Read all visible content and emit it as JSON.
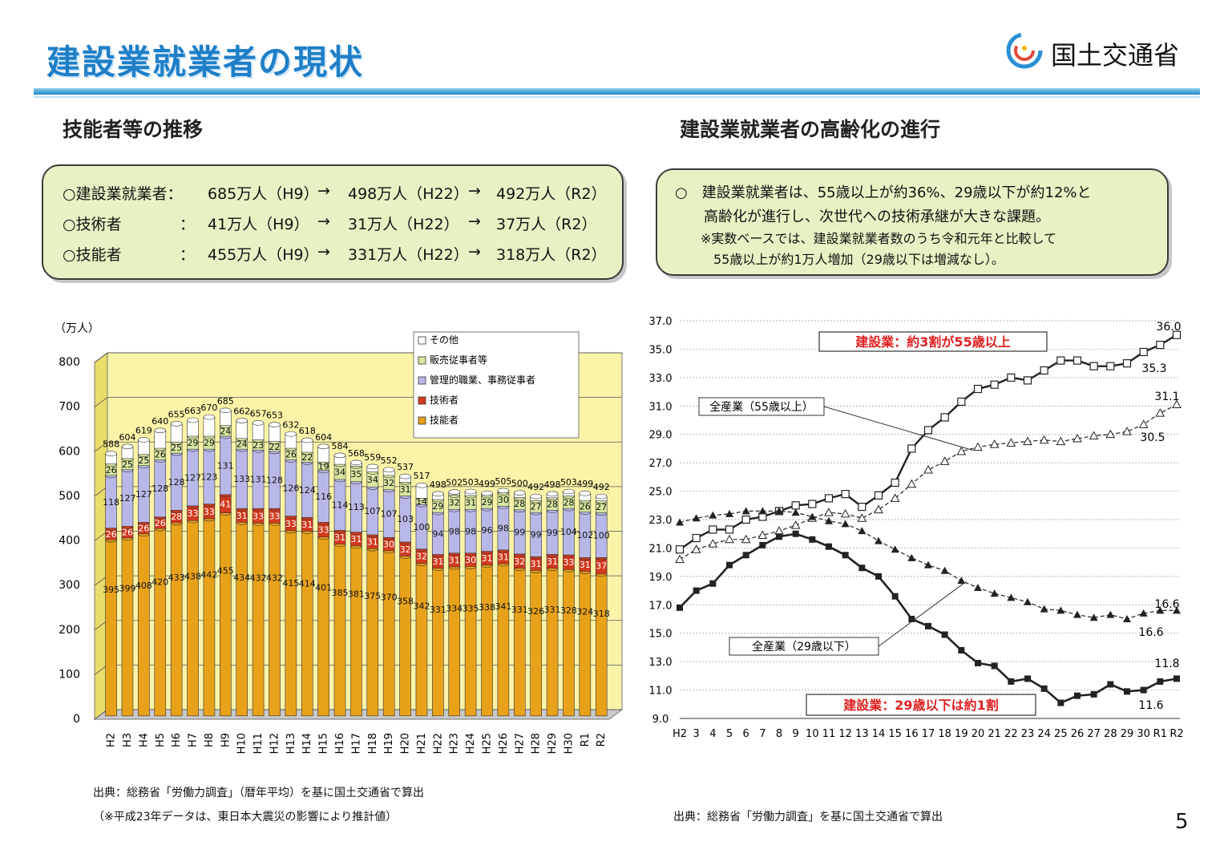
{
  "header": {
    "title": "建設業就業者の現状",
    "ministry": "国土交通省"
  },
  "left": {
    "subtitle": "技能者等の推移",
    "summary": [
      {
        "label": "○建設業就業者：",
        "v1": "685万人（H9）",
        "arrow1": "→",
        "v2": "498万人（H22）",
        "arrow2": "→",
        "v3": "492万人（R2）"
      },
      {
        "label": "○技術者",
        "colon": "：",
        "v1": "41万人（H9）",
        "arrow1": "→",
        "v2": "31万人（H22）",
        "arrow2": "→",
        "v3": "37万人（R2）"
      },
      {
        "label": "○技能者",
        "colon": "：",
        "v1": "455万人（H9）",
        "arrow1": "→",
        "v2": "331万人（H22）",
        "arrow2": "→",
        "v3": "318万人（R2）"
      }
    ],
    "source1": "出典：総務省「労働力調査」（暦年平均）を基に国土交通省で算出",
    "source2": "（※平成23年データは、東日本大震災の影響により推計値）"
  },
  "right": {
    "subtitle": "建設業就業者の高齢化の進行",
    "summary": [
      "○　建設業就業者は、55歳以上が約36%、29歳以下が約12%と",
      "　　高齢化が進行し、次世代への技術承継が大きな課題。",
      "　　※実数ベースでは、建設業就業者数のうち令和元年と比較して",
      "　　　55歳以上が約1万人増加（29歳以下は増減なし）。"
    ],
    "source": "出典：総務省「労働力調査」を基に国土交通省で算出"
  },
  "page_number": "5",
  "colors": {
    "title_blue": "#1e7fc8",
    "box_green": "#e6f2c4",
    "skill": "#e8a21a",
    "engineer": "#d23a1e",
    "manager": "#b8b8e8",
    "sales": "#d8e6a0",
    "other": "#ffffff",
    "wall": "#fbf4a8",
    "red_label": "#e02020"
  },
  "chart_data": [
    {
      "type": "bar",
      "stacked": true,
      "unit": "（万人）",
      "categories": [
        "H2",
        "H3",
        "H4",
        "H5",
        "H6",
        "H7",
        "H8",
        "H9",
        "H10",
        "H11",
        "H12",
        "H13",
        "H14",
        "H15",
        "H16",
        "H17",
        "H18",
        "H19",
        "H20",
        "H21",
        "H22",
        "H23",
        "H24",
        "H25",
        "H26",
        "H27",
        "H28",
        "H29",
        "H30",
        "R1",
        "R2"
      ],
      "ylim": [
        0,
        800
      ],
      "yticks": [
        "0",
        "100",
        "200",
        "300",
        "400",
        "500",
        "600",
        "700",
        "800"
      ],
      "legend": [
        "その他",
        "販売従事者等",
        "管理的職業、事務従事者",
        "技術者",
        "技能者"
      ],
      "legend_position": "top-right",
      "totals": [
        588,
        604,
        619,
        640,
        655,
        663,
        670,
        685,
        662,
        657,
        653,
        632,
        618,
        604,
        584,
        568,
        559,
        552,
        537,
        517,
        498,
        502,
        503,
        499,
        505,
        500,
        492,
        498,
        503,
        499,
        492
      ],
      "series": [
        {
          "name": "技能者",
          "values": [
            395,
            399,
            408,
            420,
            433,
            438,
            442,
            455,
            434,
            432,
            432,
            415,
            414,
            401,
            385,
            381,
            375,
            370,
            358,
            342,
            331,
            334,
            335,
            338,
            341,
            331,
            326,
            331,
            328,
            324,
            318
          ]
        },
        {
          "name": "技術者",
          "values": [
            26,
            26,
            26,
            26,
            28,
            33,
            33,
            41,
            31,
            33,
            33,
            33,
            31,
            33,
            31,
            31,
            31,
            30,
            32,
            32,
            31,
            31,
            30,
            31,
            31,
            32,
            31,
            31,
            33,
            31,
            37
          ]
        },
        {
          "name": "管理的職業、事務従事者",
          "values": [
            118,
            127,
            127,
            128,
            128,
            127,
            123,
            131,
            133,
            131,
            128,
            126,
            124,
            116,
            114,
            113,
            107,
            107,
            103,
            100,
            94,
            98,
            98,
            96,
            98,
            99,
            99,
            99,
            104,
            102,
            100
          ]
        },
        {
          "name": "販売従事者等",
          "values": [
            26,
            25,
            25,
            26,
            25,
            29,
            29,
            24,
            24,
            23,
            22,
            26,
            22,
            19,
            34,
            35,
            34,
            32,
            31,
            14,
            29,
            32,
            31,
            29,
            30,
            28,
            27,
            28,
            28,
            26,
            27
          ]
        },
        {
          "name": "その他",
          "values": [
            23,
            27,
            33,
            40,
            41,
            36,
            43,
            34,
            40,
            38,
            38,
            32,
            27,
            35,
            20,
            8,
            12,
            13,
            13,
            29,
            13,
            7,
            9,
            5,
            5,
            10,
            9,
            9,
            10,
            16,
            10
          ]
        }
      ],
      "value_labels": {
        "技能者": [
          "395",
          "399",
          "408",
          "420",
          "433",
          "438",
          "442",
          "455",
          "434",
          "432",
          "432",
          "415",
          "414",
          "401",
          "385",
          "381",
          "375",
          "370",
          "358",
          "342",
          "331",
          "334",
          "335",
          "338",
          "341",
          "331",
          "326",
          "331",
          "328",
          "324",
          "318"
        ],
        "技術者": [
          "26",
          "26",
          "26",
          "26",
          "28",
          "33",
          "33",
          "41",
          "31",
          "33",
          "33",
          "33",
          "31",
          "33",
          "31",
          "31",
          "31",
          "30",
          "32",
          "32",
          "31",
          "31",
          "30",
          "31",
          "31",
          "32",
          "31",
          "31",
          "33",
          "31",
          "37"
        ],
        "管理的職業、事務従事者": [
          "118",
          "127",
          "127",
          "128",
          "128",
          "127",
          "123",
          "131",
          "133",
          "131",
          "128",
          "126",
          "124",
          "116",
          "114",
          "113",
          "107",
          "107",
          "103",
          "100",
          "94",
          "98",
          "98",
          "96",
          "98",
          "99",
          "99",
          "99",
          "104",
          "102",
          "100"
        ],
        "販売従事者等": [
          "26",
          "25",
          "25",
          "26",
          "25",
          "29",
          "29",
          "24",
          "24",
          "23",
          "22",
          "26",
          "22",
          "19",
          "34",
          "35",
          "34",
          "32",
          "31",
          "14",
          "29",
          "32",
          "31",
          "29",
          "30",
          "28",
          "27",
          "28",
          "28",
          "26",
          "27"
        ],
        "その他": [
          "23",
          "27",
          "33",
          "40",
          "41",
          "36",
          "43",
          "34",
          "40",
          "38",
          "38",
          "32",
          "27",
          "35",
          "20",
          "8",
          "12",
          "13",
          "13",
          "29",
          "13",
          "7",
          "9",
          "5",
          "5",
          "10",
          "9",
          "9",
          "10",
          "16",
          "10"
        ]
      }
    },
    {
      "type": "line",
      "x": [
        "H2",
        "3",
        "4",
        "5",
        "6",
        "7",
        "8",
        "9",
        "10",
        "11",
        "12",
        "13",
        "14",
        "15",
        "16",
        "17",
        "18",
        "19",
        "20",
        "21",
        "22",
        "23",
        "24",
        "25",
        "26",
        "27",
        "28",
        "29",
        "30",
        "R1",
        "R2"
      ],
      "ylim": [
        9.0,
        37.0
      ],
      "yticks": [
        "9.0",
        "11.0",
        "13.0",
        "15.0",
        "17.0",
        "19.0",
        "21.0",
        "23.0",
        "25.0",
        "27.0",
        "29.0",
        "31.0",
        "33.0",
        "35.0",
        "37.0"
      ],
      "grid": true,
      "series": [
        {
          "name": "建設業：約3割が55歳以上",
          "values": [
            20.9,
            21.7,
            22.3,
            22.3,
            23.0,
            23.2,
            23.6,
            24.0,
            24.1,
            24.5,
            24.8,
            23.9,
            24.7,
            25.6,
            28.0,
            29.3,
            30.2,
            31.3,
            32.2,
            32.5,
            33.0,
            32.8,
            33.5,
            34.2,
            34.2,
            33.8,
            33.8,
            34.0,
            34.8,
            35.3,
            36.0
          ]
        },
        {
          "name": "全産業（55歳以上）",
          "values": [
            20.2,
            20.9,
            21.3,
            21.6,
            21.6,
            21.9,
            22.2,
            22.6,
            23.1,
            23.5,
            23.4,
            23.1,
            23.7,
            24.5,
            25.5,
            26.5,
            27.1,
            27.8,
            28.1,
            28.3,
            28.4,
            28.5,
            28.6,
            28.5,
            28.7,
            28.9,
            29.0,
            29.2,
            29.7,
            30.5,
            31.1
          ]
        },
        {
          "name": "全産業（29歳以下）",
          "values": [
            22.8,
            23.1,
            23.3,
            23.4,
            23.6,
            23.6,
            23.6,
            23.5,
            23.2,
            22.9,
            22.7,
            22.2,
            21.5,
            20.9,
            20.3,
            19.8,
            19.4,
            18.7,
            18.2,
            17.8,
            17.5,
            17.2,
            16.7,
            16.6,
            16.3,
            16.1,
            16.3,
            16.0,
            16.4,
            16.6,
            16.6
          ]
        },
        {
          "name": "建設業：29歳以下は約1割",
          "values": [
            16.8,
            18.0,
            18.5,
            19.8,
            20.5,
            21.2,
            21.8,
            22.0,
            21.6,
            21.1,
            20.5,
            19.6,
            19.0,
            17.6,
            16.0,
            15.5,
            14.9,
            13.8,
            12.9,
            12.7,
            11.6,
            11.8,
            11.1,
            10.1,
            10.6,
            10.7,
            11.4,
            10.9,
            11.0,
            11.6,
            11.8
          ]
        }
      ],
      "annotations": {
        "label_55_construction": "建設業：約3割が55歳以上",
        "label_55_all": "全産業（55歳以上）",
        "label_29_all": "全産業（29歳以下）",
        "label_29_construction": "建設業：29歳以下は約1割",
        "end_const55": "36.0",
        "end_all55": "31.1",
        "r1_const55": "35.3",
        "r1_all55": "30.5",
        "end_all29": "16.6",
        "r1_all29": "16.6",
        "end_const29": "11.8",
        "r1_const29": "11.6"
      }
    }
  ]
}
